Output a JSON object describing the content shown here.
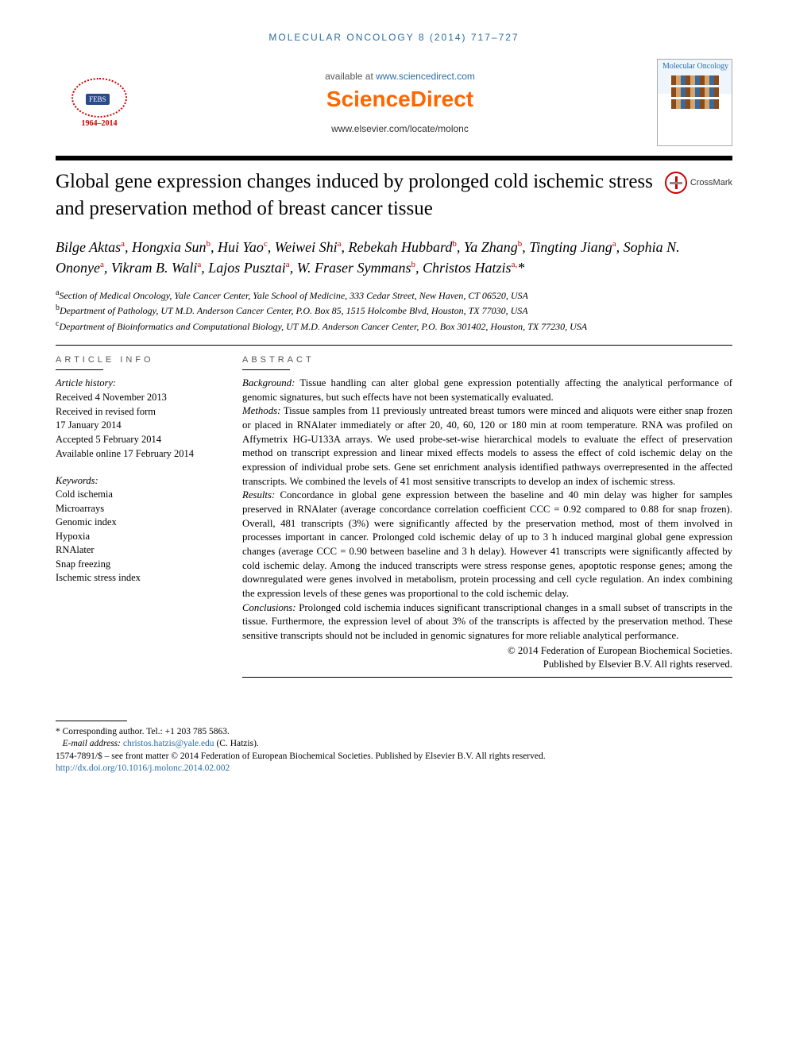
{
  "running_header": "MOLECULAR ONCOLOGY 8 (2014) 717–727",
  "banner": {
    "available_prefix": "available at ",
    "available_url": "www.sciencedirect.com",
    "brand": "ScienceDirect",
    "journal_url": "www.elsevier.com/locate/molonc",
    "febs_years": "1964–2014",
    "cover_title": "Molecular Oncology"
  },
  "crossmark_label": "CrossMark",
  "title": "Global gene expression changes induced by prolonged cold ischemic stress and preservation method of breast cancer tissue",
  "authors_html": "Bilge Aktas<sup>a</sup>, Hongxia Sun<sup>b</sup>, Hui Yao<sup>c</sup>, Weiwei Shi<sup>a</sup>, Rebekah Hubbard<sup>b</sup>, Ya Zhang<sup>b</sup>, Tingting Jiang<sup>a</sup>, Sophia N. Ononye<sup>a</sup>, Vikram B. Wali<sup>a</sup>, Lajos Pusztai<sup>a</sup>, W. Fraser Symmans<sup>b</sup>, Christos Hatzis<sup>a,</sup>*",
  "affiliations": [
    "<sup>a</sup>Section of Medical Oncology, Yale Cancer Center, Yale School of Medicine, 333 Cedar Street, New Haven, CT 06520, USA",
    "<sup>b</sup>Department of Pathology, UT M.D. Anderson Cancer Center, P.O. Box 85, 1515 Holcombe Blvd, Houston, TX 77030, USA",
    "<sup>c</sup>Department of Bioinformatics and Computational Biology, UT M.D. Anderson Cancer Center, P.O. Box 301402, Houston, TX 77230, USA"
  ],
  "article_info": {
    "label": "ARTICLE INFO",
    "history_label": "Article history:",
    "history": [
      "Received 4 November 2013",
      "Received in revised form",
      "17 January 2014",
      "Accepted 5 February 2014",
      "Available online 17 February 2014"
    ],
    "keywords_label": "Keywords:",
    "keywords": [
      "Cold ischemia",
      "Microarrays",
      "Genomic index",
      "Hypoxia",
      "RNAlater",
      "Snap freezing",
      "Ischemic stress index"
    ]
  },
  "abstract": {
    "label": "ABSTRACT",
    "sections": [
      {
        "head": "Background:",
        "body": "Tissue handling can alter global gene expression potentially affecting the analytical performance of genomic signatures, but such effects have not been systematically evaluated."
      },
      {
        "head": "Methods:",
        "body": "Tissue samples from 11 previously untreated breast tumors were minced and aliquots were either snap frozen or placed in RNAlater immediately or after 20, 40, 60, 120 or 180 min at room temperature. RNA was profiled on Affymetrix HG-U133A arrays. We used probe-set-wise hierarchical models to evaluate the effect of preservation method on transcript expression and linear mixed effects models to assess the effect of cold ischemic delay on the expression of individual probe sets. Gene set enrichment analysis identified pathways overrepresented in the affected transcripts. We combined the levels of 41 most sensitive transcripts to develop an index of ischemic stress."
      },
      {
        "head": "Results:",
        "body": "Concordance in global gene expression between the baseline and 40 min delay was higher for samples preserved in RNAlater (average concordance correlation coefficient CCC = 0.92 compared to 0.88 for snap frozen). Overall, 481 transcripts (3%) were significantly affected by the preservation method, most of them involved in processes important in cancer. Prolonged cold ischemic delay of up to 3 h induced marginal global gene expression changes (average CCC = 0.90 between baseline and 3 h delay). However 41 transcripts were significantly affected by cold ischemic delay. Among the induced transcripts were stress response genes, apoptotic response genes; among the downregulated were genes involved in metabolism, protein processing and cell cycle regulation. An index combining the expression levels of these genes was proportional to the cold ischemic delay."
      },
      {
        "head": "Conclusions:",
        "body": "Prolonged cold ischemia induces significant transcriptional changes in a small subset of transcripts in the tissue. Furthermore, the expression level of about 3% of the transcripts is affected by the preservation method. These sensitive transcripts should not be included in genomic signatures for more reliable analytical performance."
      }
    ],
    "copyright1": "© 2014 Federation of European Biochemical Societies.",
    "copyright2": "Published by Elsevier B.V. All rights reserved."
  },
  "footnotes": {
    "corresponding": "* Corresponding author. Tel.: +1 203 785 5863.",
    "email_label": "E-mail address: ",
    "email": "christos.hatzis@yale.edu",
    "email_suffix": " (C. Hatzis).",
    "issn_line": "1574-7891/$ – see front matter © 2014 Federation of European Biochemical Societies. Published by Elsevier B.V. All rights reserved.",
    "doi": "http://dx.doi.org/10.1016/j.molonc.2014.02.002"
  },
  "colors": {
    "link": "#2a6ea5",
    "brand_orange": "#ff6600",
    "sup_red": "#c00"
  }
}
